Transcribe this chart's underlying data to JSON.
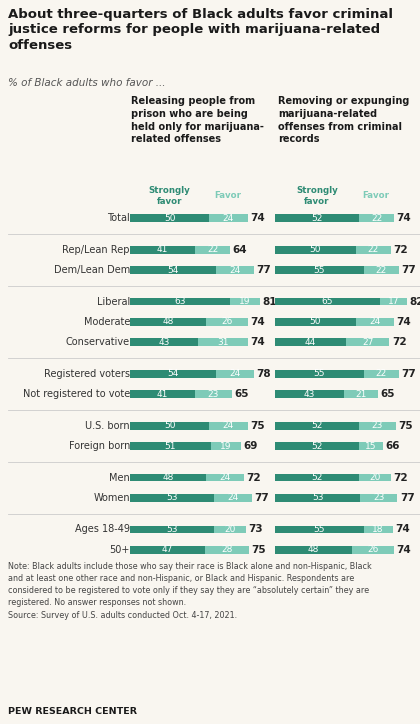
{
  "title": "About three-quarters of Black adults favor criminal\njustice reforms for people with marijuana-related\noffenses",
  "subtitle": "% of Black adults who favor ...",
  "col1_header": "Releasing people from\nprison who are being\nheld only for marijuana-\nrelated offenses",
  "col2_header": "Removing or expunging\nmarijuana-related\noffenses from criminal\nrecords",
  "strongly_favor_label": "Strongly\nfavor",
  "favor_label": "Favor",
  "categories": [
    "Total",
    "Rep/Lean Rep",
    "Dem/Lean Dem",
    "Liberal",
    "Moderate",
    "Conservative",
    "Registered voters",
    "Not registered to vote",
    "U.S. born",
    "Foreign born",
    "Men",
    "Women",
    "Ages 18-49",
    "50+"
  ],
  "col1_strongly": [
    50,
    41,
    54,
    63,
    48,
    43,
    54,
    41,
    50,
    51,
    48,
    53,
    53,
    47
  ],
  "col1_favor": [
    24,
    22,
    24,
    19,
    26,
    31,
    24,
    23,
    24,
    19,
    24,
    24,
    20,
    28
  ],
  "col1_total": [
    74,
    64,
    77,
    81,
    74,
    74,
    78,
    65,
    75,
    69,
    72,
    77,
    73,
    75
  ],
  "col2_strongly": [
    52,
    50,
    55,
    65,
    50,
    44,
    55,
    43,
    52,
    52,
    52,
    53,
    55,
    48
  ],
  "col2_favor": [
    22,
    22,
    22,
    17,
    24,
    27,
    22,
    21,
    23,
    15,
    20,
    23,
    18,
    26
  ],
  "col2_total": [
    74,
    72,
    77,
    82,
    74,
    72,
    77,
    65,
    75,
    66,
    72,
    77,
    74,
    74
  ],
  "color_strongly": "#2e8b74",
  "color_favor": "#7ecbb8",
  "separators_after": [
    0,
    2,
    5,
    7,
    9,
    11
  ],
  "background": "#f9f6f0",
  "note_text": "Note: Black adults include those who say their race is Black alone and non-Hispanic, Black\nand at least one other race and non-Hispanic, or Black and Hispanic. Respondents are\nconsidered to be registered to vote only if they say they are “absolutely certain” they are\nregistered. No answer responses not shown.\nSource: Survey of U.S. adults conducted Oct. 4-17, 2021.",
  "source_label": "PEW RESEARCH CENTER"
}
